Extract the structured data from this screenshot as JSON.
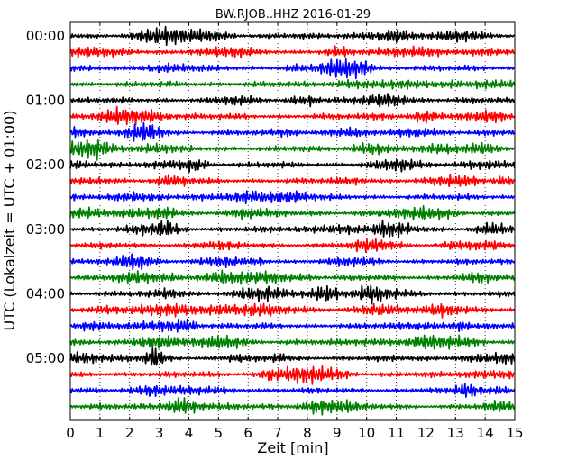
{
  "chart_data": {
    "type": "line",
    "title": "BW.RJOB..HHZ 2016-01-29",
    "xlabel": "Zeit  [min]",
    "ylabel": "UTC (Lokalzeit = UTC + 01:00)",
    "xlim": [
      0,
      15
    ],
    "x_ticks": [
      "0",
      "1",
      "2",
      "3",
      "4",
      "5",
      "6",
      "7",
      "8",
      "9",
      "10",
      "11",
      "12",
      "13",
      "14",
      "15"
    ],
    "y_tick_labels": [
      "00:00",
      "01:00",
      "02:00",
      "03:00",
      "04:00",
      "05:00"
    ],
    "y_tick_rows": [
      0,
      4,
      8,
      12,
      16,
      20
    ],
    "grid": "vertical dotted lines at each minute",
    "row_count": 24,
    "row_colors": [
      "#000000",
      "#ff0000",
      "#0000ff",
      "#008000"
    ],
    "row_interval_minutes": 15
  }
}
